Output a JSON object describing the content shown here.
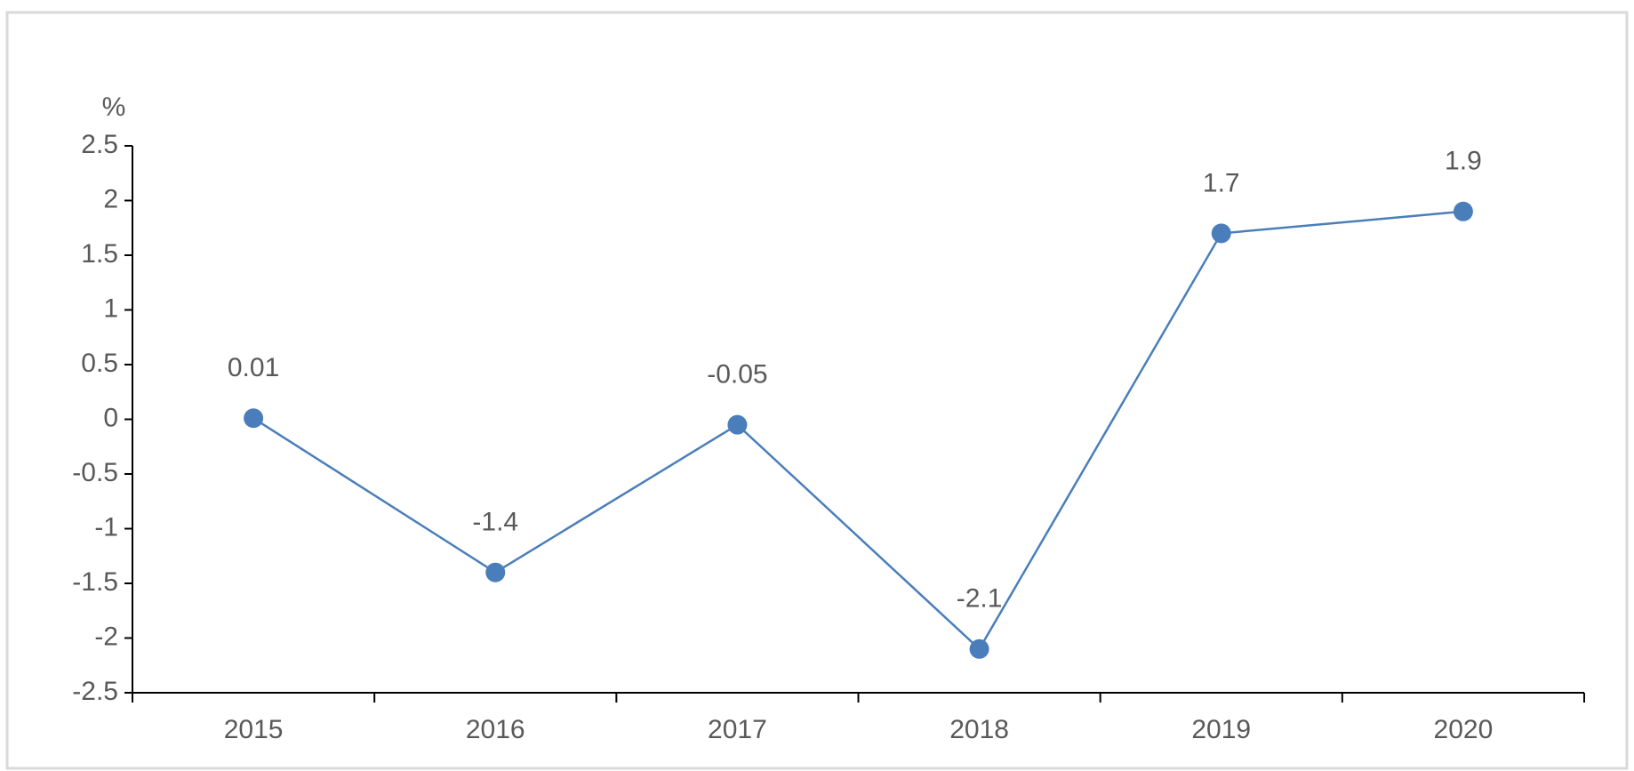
{
  "chart_data": {
    "type": "line",
    "y_label": "%",
    "categories": [
      "2015",
      "2016",
      "2017",
      "2018",
      "2019",
      "2020"
    ],
    "values": [
      0.01,
      -1.4,
      -0.05,
      -2.1,
      1.7,
      1.9
    ],
    "color": "#4a7ebb",
    "ylim": [
      -2.5,
      2.5
    ],
    "yticks": [
      -2.5,
      -2,
      -1.5,
      -1,
      -0.5,
      0,
      0.5,
      1,
      1.5,
      2,
      2.5
    ],
    "grid": false
  }
}
